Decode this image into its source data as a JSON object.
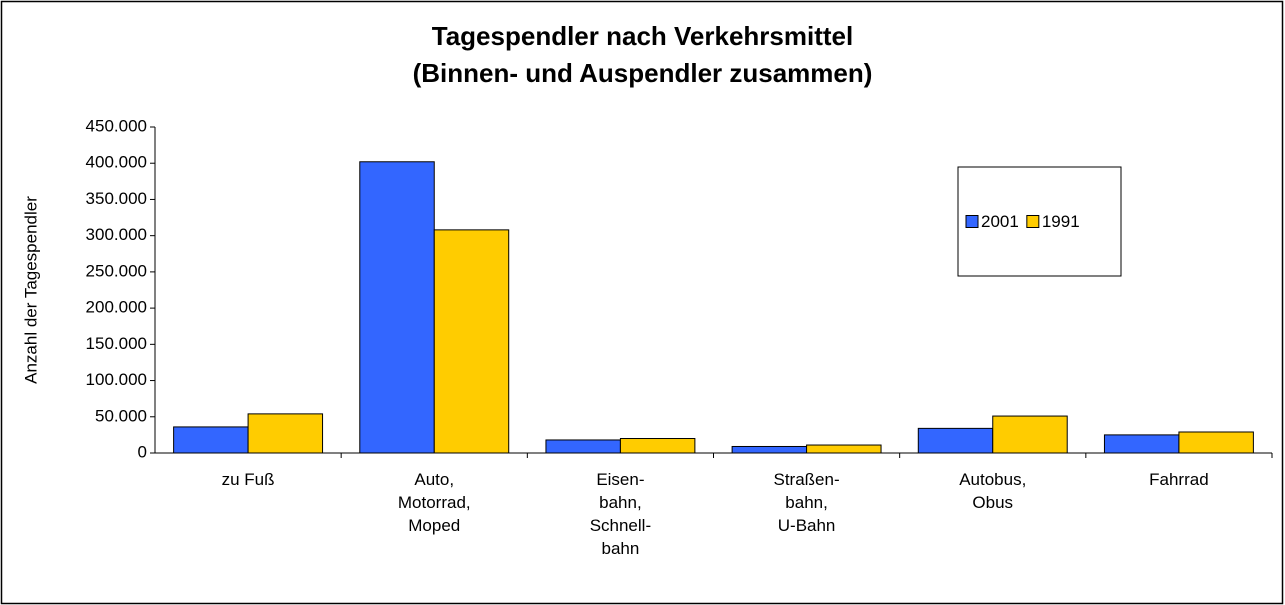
{
  "chart_data": {
    "type": "bar",
    "title": "Tagespendler nach Verkehrsmittel\n(Binnen- und Auspendler zusammen)",
    "y_label": "Anzahl der Tagespendler",
    "categories": [
      "zu Fuß",
      "Auto,\nMotorrad,\nMoped",
      "Eisen-\nbahn,\nSchnell-\nbahn",
      "Straßen-\nbahn,\nU-Bahn",
      "Autobus,\nObus",
      "Fahrrad"
    ],
    "series": [
      {
        "name": "2001",
        "color": "#3366ff",
        "values": [
          36000,
          402000,
          18000,
          9000,
          34000,
          25000
        ]
      },
      {
        "name": "1991",
        "color": "#ffcc00",
        "values": [
          54000,
          308000,
          20000,
          11000,
          51000,
          29000
        ]
      }
    ],
    "ylim": [
      0,
      450000
    ],
    "yticks": [
      0,
      {
        "value": 50000,
        "label": "50.000"
      },
      {
        "value": 100000,
        "label": "100.000"
      },
      {
        "value": 150000,
        "label": "150.000"
      },
      {
        "value": 200000,
        "label": "200.000"
      },
      {
        "value": 250000,
        "label": "250.000"
      },
      {
        "value": 300000,
        "label": "300.000"
      },
      {
        "value": 350000,
        "label": "350.000"
      },
      {
        "value": 400000,
        "label": "400.000"
      },
      {
        "value": 450000,
        "label": "450.000"
      }
    ],
    "grid": false,
    "legend": "top-right"
  }
}
